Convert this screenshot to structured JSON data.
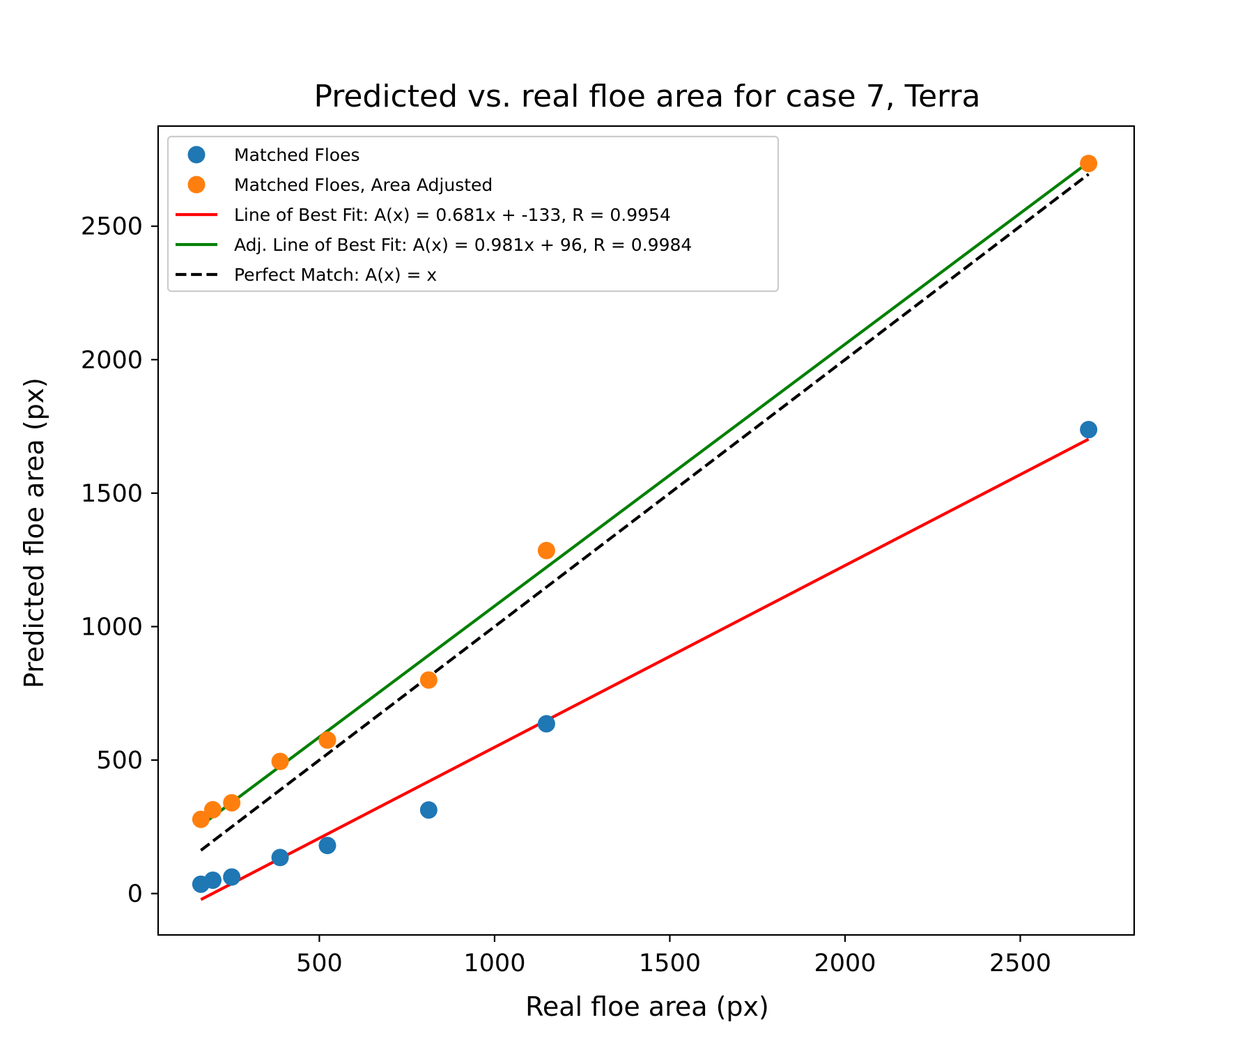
{
  "chart_data": {
    "type": "scatter",
    "title": "Predicted vs. real floe area  for case 7, Terra",
    "xlabel": "Real floe area (px)",
    "ylabel": "Predicted floe area (px)",
    "xlim": [
      40,
      2825
    ],
    "ylim": [
      -155,
      2875
    ],
    "xticks": [
      500,
      1000,
      1500,
      2000,
      2500
    ],
    "yticks": [
      0,
      500,
      1000,
      1500,
      2000,
      2500
    ],
    "grid": false,
    "legend_position": "top-left",
    "series": [
      {
        "name": "Matched Floes",
        "kind": "scatter",
        "color": "#1f77b4",
        "x": [
          162,
          196,
          250,
          388,
          523,
          812,
          1148,
          2695
        ],
        "y": [
          35,
          50,
          62,
          135,
          180,
          313,
          636,
          1738
        ]
      },
      {
        "name": "Matched Floes, Area Adjusted",
        "kind": "scatter",
        "color": "#ff7f0e",
        "x": [
          162,
          196,
          250,
          388,
          523,
          812,
          1148,
          2695
        ],
        "y": [
          278,
          314,
          340,
          495,
          575,
          800,
          1285,
          2735
        ]
      },
      {
        "name": "Line of Best Fit: A(x) = 0.681x + -133, R = 0.9954",
        "kind": "line",
        "color": "#ff0000",
        "dash": "solid",
        "slope": 0.681,
        "intercept": -133,
        "x_range": [
          162,
          2695
        ]
      },
      {
        "name": "Adj. Line of Best Fit: A(x) = 0.981x + 96, R = 0.9984",
        "kind": "line",
        "color": "#008000",
        "dash": "solid",
        "slope": 0.981,
        "intercept": 96,
        "x_range": [
          162,
          2695
        ]
      },
      {
        "name": "Perfect Match: A(x) = x",
        "kind": "line",
        "color": "#000000",
        "dash": "dashed",
        "slope": 1,
        "intercept": 0,
        "x_range": [
          162,
          2695
        ]
      }
    ]
  }
}
